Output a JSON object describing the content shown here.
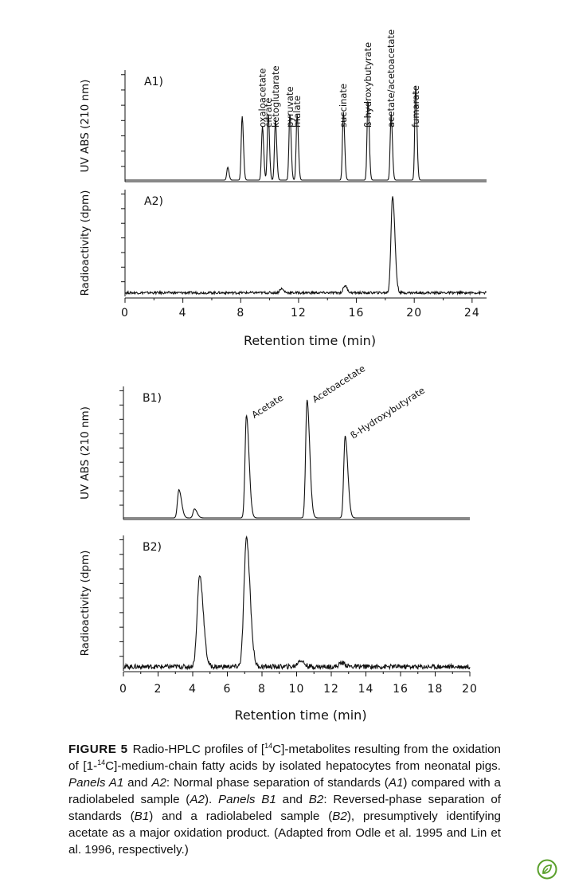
{
  "chart_data": [
    {
      "type": "line",
      "panel": "A1)",
      "ylabel": "UV ABS (210 nm)",
      "xlim": [
        0,
        25
      ],
      "x_ticks": [
        0,
        4,
        8,
        12,
        16,
        20,
        24
      ],
      "peaks": [
        {
          "x": 7.1,
          "h": 0.12
        },
        {
          "x": 8.1,
          "h": 0.6
        },
        {
          "x": 9.5,
          "h": 0.5,
          "label": "oxaloacetate"
        },
        {
          "x": 9.9,
          "h": 0.62,
          "label": "citrate"
        },
        {
          "x": 10.4,
          "h": 0.56,
          "label": "ketoglutarate"
        },
        {
          "x": 11.4,
          "h": 0.62,
          "label": "pyruvate"
        },
        {
          "x": 11.9,
          "h": 0.62,
          "label": "malate"
        },
        {
          "x": 15.1,
          "h": 0.64,
          "label": "succinate"
        },
        {
          "x": 16.8,
          "h": 0.75,
          "label": "ß-hydroxybutyrate"
        },
        {
          "x": 18.4,
          "h": 0.62,
          "label": "acetate/acetoacetate"
        },
        {
          "x": 20.1,
          "h": 0.88,
          "label": "fumarate"
        }
      ]
    },
    {
      "type": "line",
      "panel": "A2)",
      "ylabel": "Radioactivity (dpm)",
      "xlabel": "Retention time (min)",
      "xlim": [
        0,
        25
      ],
      "x_ticks": [
        0,
        4,
        8,
        12,
        16,
        20,
        24
      ],
      "peaks": [
        {
          "x": 10.8,
          "h": 0.04
        },
        {
          "x": 15.2,
          "h": 0.07
        },
        {
          "x": 18.5,
          "h": 0.95
        }
      ]
    },
    {
      "type": "line",
      "panel": "B1)",
      "ylabel": "UV ABS (210 nm)",
      "xlim": [
        0,
        20
      ],
      "x_ticks": [
        0,
        2,
        4,
        6,
        8,
        10,
        12,
        14,
        16,
        18,
        20
      ],
      "peaks": [
        {
          "x": 3.2,
          "h": 0.22
        },
        {
          "x": 4.1,
          "h": 0.07
        },
        {
          "x": 7.1,
          "h": 0.8,
          "label": "Acetate"
        },
        {
          "x": 10.6,
          "h": 0.92,
          "label": "Acetoacetate"
        },
        {
          "x": 12.8,
          "h": 0.64,
          "label": "ß-Hydroxybutyrate"
        }
      ]
    },
    {
      "type": "line",
      "panel": "B2)",
      "ylabel": "Radioactivity (dpm)",
      "xlabel": "Retention time (min)",
      "xlim": [
        0,
        20
      ],
      "x_ticks": [
        0,
        2,
        4,
        6,
        8,
        10,
        12,
        14,
        16,
        18,
        20
      ],
      "peaks": [
        {
          "x": 4.4,
          "h": 0.7
        },
        {
          "x": 7.1,
          "h": 0.98
        },
        {
          "x": 10.2,
          "h": 0.05
        },
        {
          "x": 12.6,
          "h": 0.03
        }
      ]
    }
  ],
  "caption": {
    "label": "FIGURE 5",
    "text_1": "Radio-HPLC profiles of [",
    "sup_1": "14",
    "text_2": "C]-metabolites resulting from the oxidation of [1-",
    "sup_2": "14",
    "text_3": "C]-medium-chain fatty acids by isolated hepatocytes from neonatal pigs. ",
    "italic_1": "Panels A1",
    "text_4": " and ",
    "italic_2": "A2",
    "text_5": ": Normal phase separation of standards (",
    "italic_3": "A1",
    "text_6": ") compared with a radiolabeled sample (",
    "italic_4": "A2",
    "text_7": "). ",
    "italic_5": "Panels B1",
    "text_8": " and ",
    "italic_6": "B2",
    "text_9": ": Reversed-phase separation of standards (",
    "italic_7": "B1",
    "text_10": ") and a radiolabeled sample (",
    "italic_8": "B2",
    "text_11": "), presumptively identifying acetate as a major oxidation product. (Adapted from Odle et al. 1995 and Lin et al. 1996, respectively.)"
  },
  "colors": {
    "ink": "#111111",
    "logo": "#5aa02c"
  },
  "logo_icon": "leaf-circle-icon"
}
